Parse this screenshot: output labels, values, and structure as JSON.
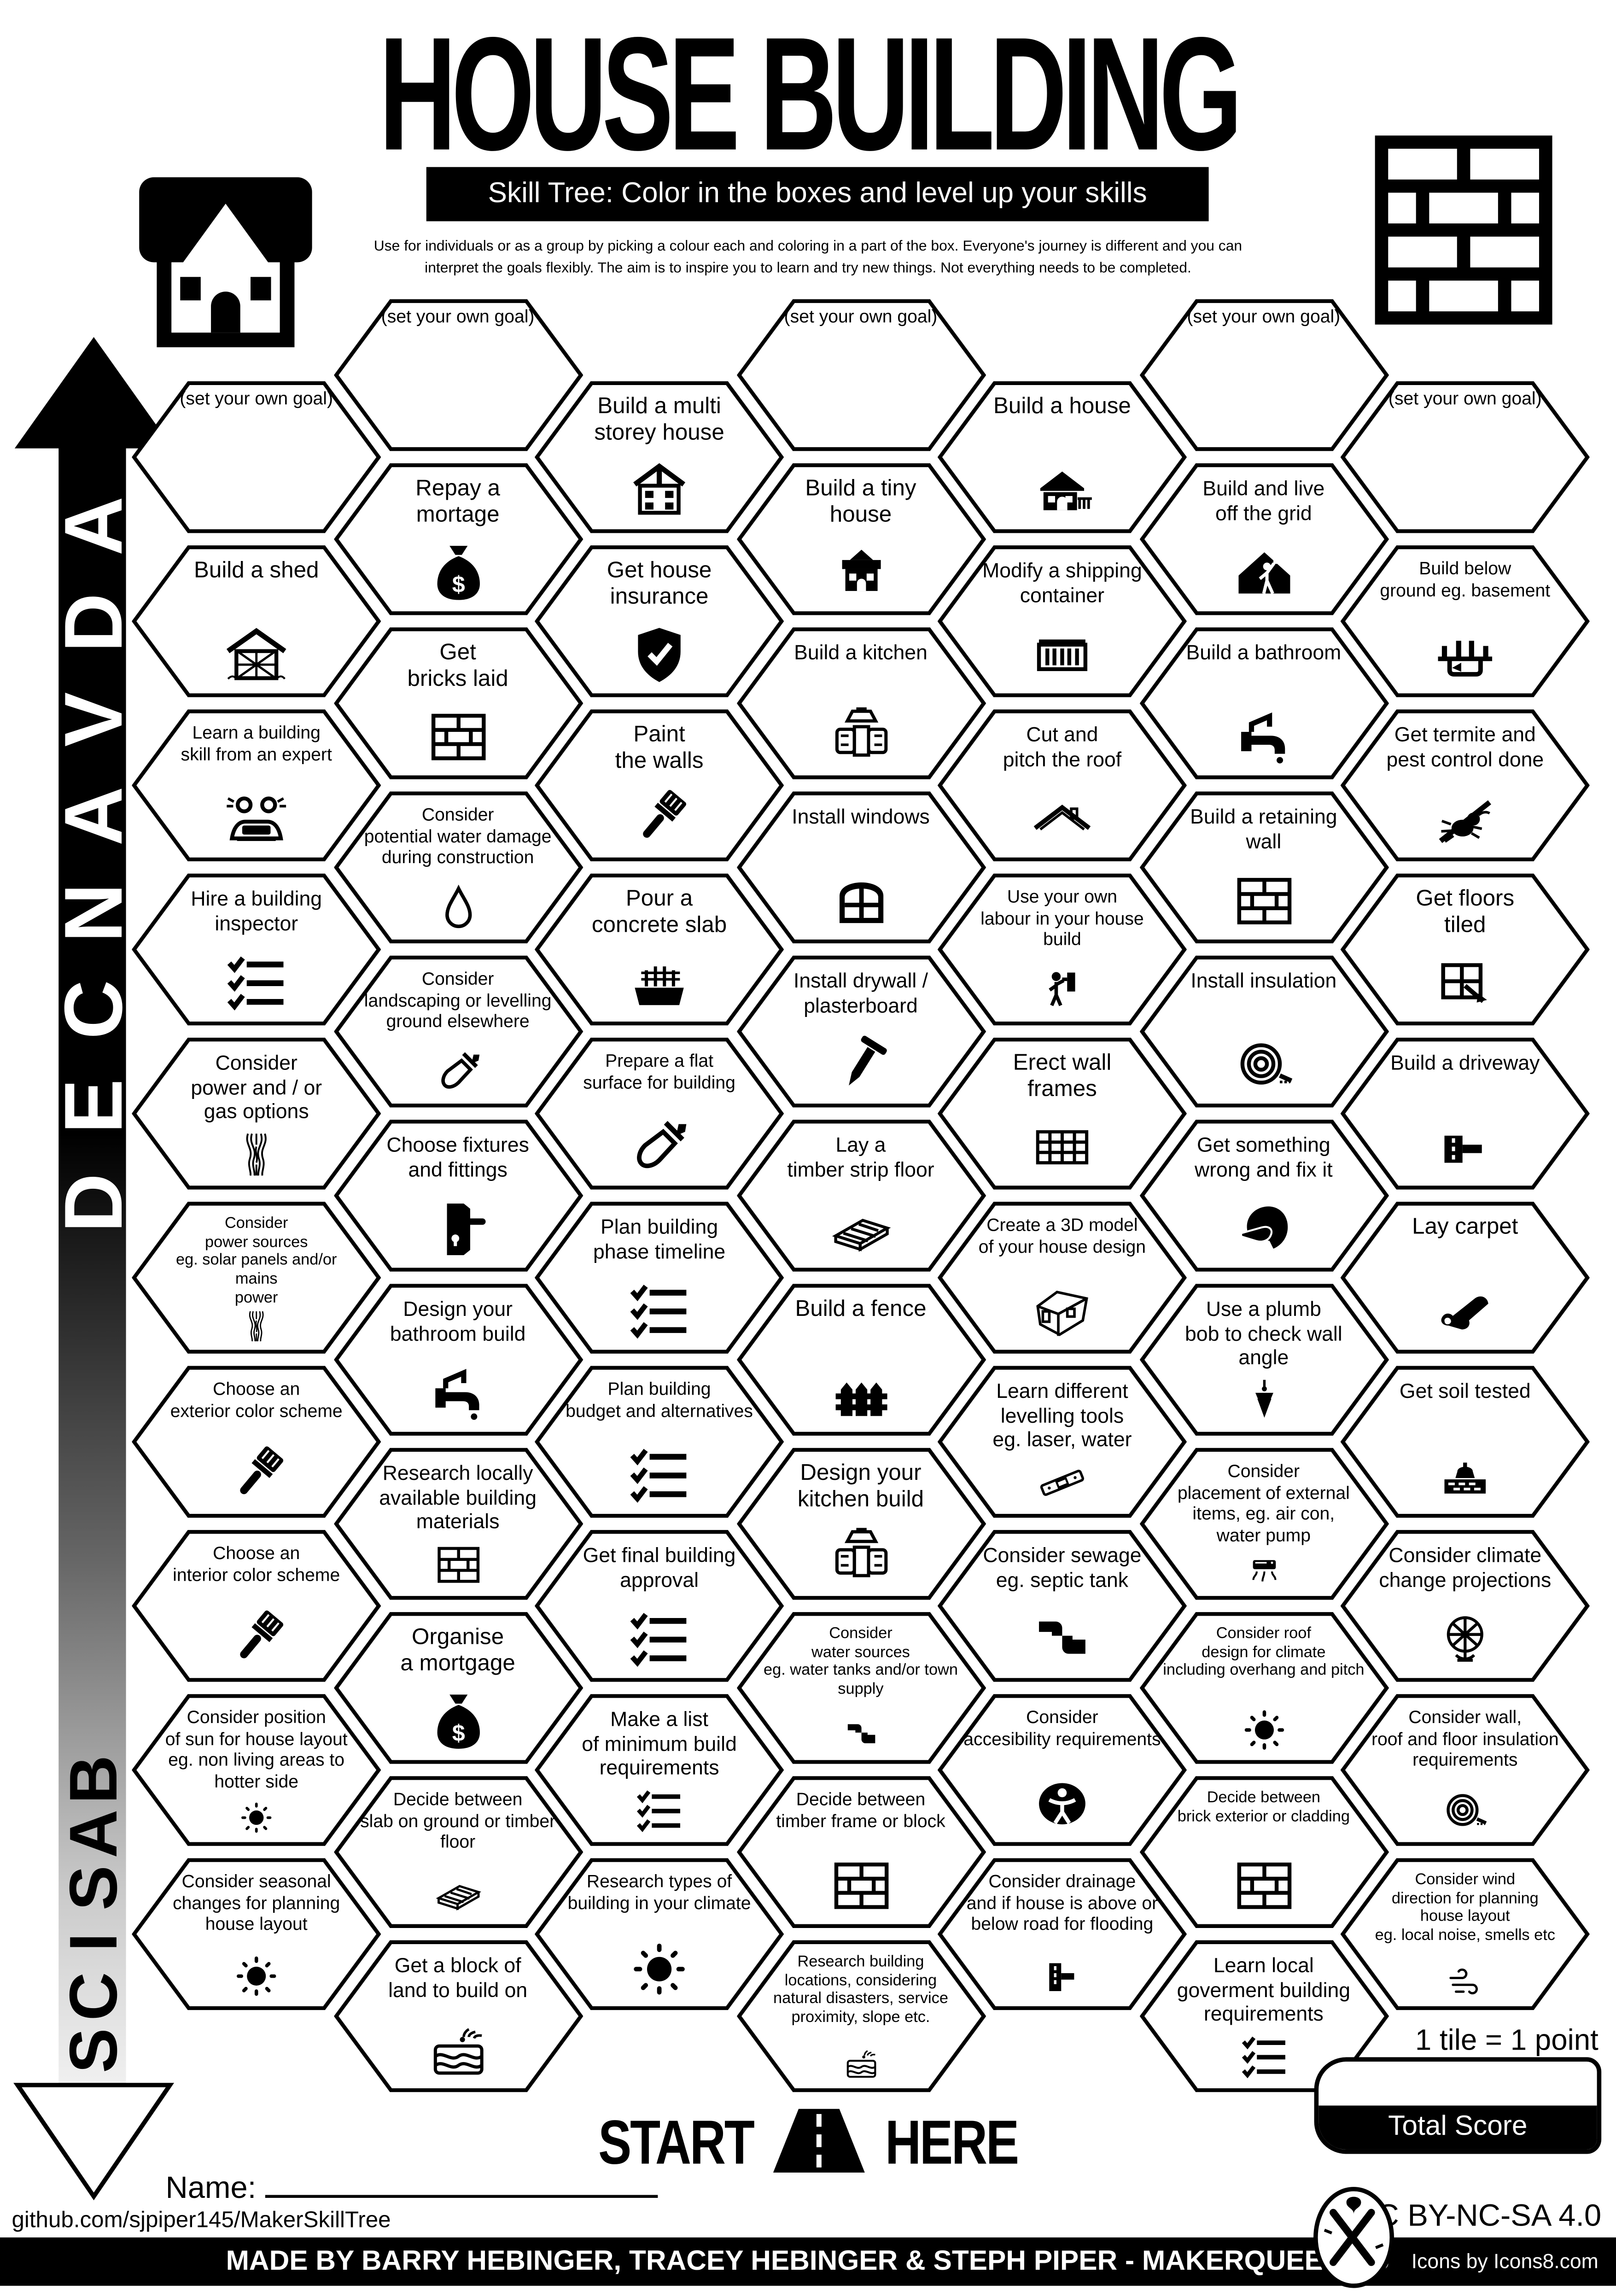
{
  "title": "HOUSE BUILDING",
  "subtitle": "Skill Tree:  Color in the boxes and level up your skills",
  "desc": {
    "line1": "Use for individuals or as a group by picking a colour each and coloring in a part of the box.  Everyone's journey is different and you can",
    "line2": "interpret the goals flexibly.  The aim is to inspire you to learn and try new things. Not everything needs to be completed."
  },
  "axis": {
    "advanced_label": "ADVANCED",
    "basics_label": "BASICS"
  },
  "start_here": {
    "start": "START",
    "here": "HERE"
  },
  "name_label": "Name:",
  "github_url": "github.com/sjpiper145/MakerSkillTree",
  "score": {
    "tile_note": "1 tile = 1 point",
    "total_label": "Total Score"
  },
  "footer": {
    "credit": "MADE BY BARRY HEBINGER, TRACEY HEBINGER & STEPH PIPER  -  MAKERQUEEN AU",
    "icons_credit": "Icons by Icons8.com",
    "license": "CC BY-NC-SA 4.0"
  },
  "colors": {
    "ink": "#000000",
    "paper": "#ffffff"
  },
  "hexagons": [
    {
      "col": 1,
      "row": 0,
      "name": "goal-1",
      "label": "(set your own goal)",
      "icon": null
    },
    {
      "col": 1,
      "row": 1,
      "name": "build-a-shed",
      "label": "Build a shed",
      "icon": "shed"
    },
    {
      "col": 1,
      "row": 2,
      "name": "learn-building-skill-from-expert",
      "label": "Learn a building\nskill from an expert",
      "icon": "learn-expert"
    },
    {
      "col": 1,
      "row": 3,
      "name": "hire-building-inspector",
      "label": "Hire a building\ninspector",
      "icon": "checklist"
    },
    {
      "col": 1,
      "row": 4,
      "name": "consider-power-gas-options",
      "label": "Consider\npower and / or\ngas options",
      "icon": "wires"
    },
    {
      "col": 1,
      "row": 5,
      "name": "consider-power-sources",
      "label": "Consider\npower sources\neg. solar panels and/or mains\npower",
      "icon": "wires"
    },
    {
      "col": 1,
      "row": 6,
      "name": "choose-exterior-color-scheme",
      "label": "Choose an\nexterior color scheme",
      "icon": "brush"
    },
    {
      "col": 1,
      "row": 7,
      "name": "choose-interior-color-scheme",
      "label": "Choose an\ninterior color scheme",
      "icon": "brush"
    },
    {
      "col": 1,
      "row": 8,
      "name": "consider-sun-position",
      "label": "Consider position\nof sun for house layout\neg. non living areas to\nhotter side",
      "icon": "sun"
    },
    {
      "col": 1,
      "row": 9,
      "name": "consider-seasonal-changes",
      "label": "Consider seasonal\nchanges for planning\nhouse layout",
      "icon": "sun"
    },
    {
      "col": 2,
      "row": 0,
      "name": "goal-2",
      "label": "(set your own goal)",
      "icon": null
    },
    {
      "col": 2,
      "row": 1,
      "name": "repay-a-mortage",
      "label": "Repay a\nmortage",
      "icon": "money-bag"
    },
    {
      "col": 2,
      "row": 2,
      "name": "get-bricks-laid",
      "label": "Get\nbricks laid",
      "icon": "bricks"
    },
    {
      "col": 2,
      "row": 3,
      "name": "consider-water-damage",
      "label": "Consider\npotential water damage\nduring construction",
      "icon": "drop"
    },
    {
      "col": 2,
      "row": 4,
      "name": "consider-landscaping",
      "label": "Consider\nlandscaping or levelling\nground elsewhere",
      "icon": "shovel"
    },
    {
      "col": 2,
      "row": 5,
      "name": "choose-fixtures-fittings",
      "label": "Choose fixtures\nand fittings",
      "icon": "door-handle"
    },
    {
      "col": 2,
      "row": 6,
      "name": "design-bathroom-build",
      "label": "Design your\nbathroom build",
      "icon": "tap"
    },
    {
      "col": 2,
      "row": 7,
      "name": "research-local-materials",
      "label": "Research locally\navailable building\nmaterials",
      "icon": "bricks"
    },
    {
      "col": 2,
      "row": 8,
      "name": "organise-a-mortgage",
      "label": "Organise\na mortgage",
      "icon": "money-bag"
    },
    {
      "col": 2,
      "row": 9,
      "name": "decide-slab-or-timber",
      "label": "Decide between\nslab on ground or timber\nfloor",
      "icon": "planks"
    },
    {
      "col": 2,
      "row": 10,
      "name": "get-block-of-land",
      "label": "Get a block of\nland to build on",
      "icon": "field"
    },
    {
      "col": 3,
      "row": 0,
      "name": "build-multi-storey-house",
      "label": "Build a multi\nstorey house",
      "icon": "multi-house"
    },
    {
      "col": 3,
      "row": 1,
      "name": "get-house-insurance",
      "label": "Get house\ninsurance",
      "icon": "shield-check"
    },
    {
      "col": 3,
      "row": 2,
      "name": "paint-the-walls",
      "label": "Paint\nthe walls",
      "icon": "brush"
    },
    {
      "col": 3,
      "row": 3,
      "name": "pour-concrete-slab",
      "label": "Pour a\nconcrete slab",
      "icon": "concrete"
    },
    {
      "col": 3,
      "row": 4,
      "name": "prepare-flat-surface",
      "label": "Prepare a flat\nsurface for building",
      "icon": "shovel"
    },
    {
      "col": 3,
      "row": 5,
      "name": "plan-building-phase-timeline",
      "label": "Plan building\nphase timeline",
      "icon": "checklist"
    },
    {
      "col": 3,
      "row": 6,
      "name": "plan-building-budget",
      "label": "Plan building\nbudget and alternatives",
      "icon": "checklist"
    },
    {
      "col": 3,
      "row": 7,
      "name": "get-final-building-approval",
      "label": "Get final building\napproval",
      "icon": "checklist"
    },
    {
      "col": 3,
      "row": 8,
      "name": "make-minimum-build-list",
      "label": "Make a list\nof minimum build\nrequirements",
      "icon": "checklist"
    },
    {
      "col": 3,
      "row": 9,
      "name": "research-building-types-climate",
      "label": "Research types of\nbuilding in your climate",
      "icon": "sun"
    },
    {
      "col": 4,
      "row": 0,
      "name": "goal-4",
      "label": "(set your own goal)",
      "icon": null
    },
    {
      "col": 4,
      "row": 1,
      "name": "build-a-tiny-house",
      "label": "Build a tiny\nhouse",
      "icon": "tiny-house"
    },
    {
      "col": 4,
      "row": 2,
      "name": "build-a-kitchen",
      "label": "Build a kitchen",
      "icon": "cabinet"
    },
    {
      "col": 4,
      "row": 3,
      "name": "install-windows",
      "label": "Install windows",
      "icon": "window"
    },
    {
      "col": 4,
      "row": 4,
      "name": "install-drywall",
      "label": "Install drywall /\nplasterboard",
      "icon": "nail"
    },
    {
      "col": 4,
      "row": 5,
      "name": "lay-timber-strip-floor",
      "label": "Lay a\ntimber strip floor",
      "icon": "planks"
    },
    {
      "col": 4,
      "row": 6,
      "name": "build-a-fence",
      "label": "Build a fence",
      "icon": "fence"
    },
    {
      "col": 4,
      "row": 7,
      "name": "design-kitchen-build",
      "label": "Design your\nkitchen build",
      "icon": "cabinet"
    },
    {
      "col": 4,
      "row": 8,
      "name": "consider-water-sources",
      "label": "Consider\nwater sources\neg. water tanks and/or town\nsupply",
      "icon": "pipe"
    },
    {
      "col": 4,
      "row": 9,
      "name": "decide-timber-frame-or-block",
      "label": "Decide between\ntimber frame or block",
      "icon": "bricks"
    },
    {
      "col": 4,
      "row": 10,
      "name": "research-building-locations",
      "label": "Research building\nlocations, considering\nnatural disasters, service\nproximity, slope etc.",
      "icon": "field"
    },
    {
      "col": 5,
      "row": 0,
      "name": "build-a-house",
      "label": "Build a house",
      "icon": "house"
    },
    {
      "col": 5,
      "row": 1,
      "name": "modify-shipping-container",
      "label": "Modify a shipping\ncontainer",
      "icon": "container"
    },
    {
      "col": 5,
      "row": 2,
      "name": "cut-and-pitch-roof",
      "label": "Cut and\npitch the roof",
      "icon": "roof"
    },
    {
      "col": 5,
      "row": 3,
      "name": "use-own-labour",
      "label": "Use your own\nlabour in your house\nbuild",
      "icon": "painter"
    },
    {
      "col": 5,
      "row": 4,
      "name": "erect-wall-frames",
      "label": "Erect wall\nframes",
      "icon": "wall-frame"
    },
    {
      "col": 5,
      "row": 5,
      "name": "create-3d-model",
      "label": "Create a 3D model\nof your house design",
      "icon": "house-3d"
    },
    {
      "col": 5,
      "row": 6,
      "name": "learn-levelling-tools",
      "label": "Learn different\nlevelling tools\neg. laser, water",
      "icon": "spirit-level"
    },
    {
      "col": 5,
      "row": 7,
      "name": "consider-sewage",
      "label": "Consider sewage\neg. septic tank",
      "icon": "pipe"
    },
    {
      "col": 5,
      "row": 8,
      "name": "consider-accessibility",
      "label": "Consider\naccesibility requirements",
      "icon": "accessibility"
    },
    {
      "col": 5,
      "row": 9,
      "name": "consider-drainage",
      "label": "Consider drainage\nand if house is above or\nbelow road for flooding",
      "icon": "road-flood"
    },
    {
      "col": 6,
      "row": 0,
      "name": "goal-6",
      "label": "(set your own goal)",
      "icon": null
    },
    {
      "col": 6,
      "row": 1,
      "name": "build-live-off-grid",
      "label": "Build and live\noff the grid",
      "icon": "off-grid"
    },
    {
      "col": 6,
      "row": 2,
      "name": "build-a-bathroom",
      "label": "Build a bathroom",
      "icon": "tap"
    },
    {
      "col": 6,
      "row": 3,
      "name": "build-retaining-wall",
      "label": "Build a retaining\nwall",
      "icon": "bricks"
    },
    {
      "col": 6,
      "row": 4,
      "name": "install-insulation",
      "label": "Install insulation",
      "icon": "insulation"
    },
    {
      "col": 6,
      "row": 5,
      "name": "get-something-wrong-fix-it",
      "label": "Get something\nwrong and fix it",
      "icon": "facepalm"
    },
    {
      "col": 6,
      "row": 6,
      "name": "use-plumb-bob",
      "label": "Use a plumb\nbob to check wall\nangle",
      "icon": "plumb-bob"
    },
    {
      "col": 6,
      "row": 7,
      "name": "consider-external-items",
      "label": "Consider\nplacement of external\nitems, eg. air con,\nwater pump",
      "icon": "ac-unit"
    },
    {
      "col": 6,
      "row": 8,
      "name": "consider-roof-design-climate",
      "label": "Consider roof\ndesign for climate\nincluding overhang and pitch",
      "icon": "sun"
    },
    {
      "col": 6,
      "row": 9,
      "name": "decide-brick-or-cladding",
      "label": "Decide between\nbrick exterior or cladding",
      "icon": "bricks"
    },
    {
      "col": 6,
      "row": 10,
      "name": "learn-local-government-requirements",
      "label": "Learn local\ngoverment building\nrequirements",
      "icon": "checklist"
    },
    {
      "col": 7,
      "row": 0,
      "name": "goal-7",
      "label": "(set your own goal)",
      "icon": null
    },
    {
      "col": 7,
      "row": 1,
      "name": "build-below-ground",
      "label": "Build below\nground eg. basement",
      "icon": "basement"
    },
    {
      "col": 7,
      "row": 2,
      "name": "get-termite-pest-control",
      "label": "Get termite and\npest control done",
      "icon": "termite"
    },
    {
      "col": 7,
      "row": 3,
      "name": "get-floors-tiled",
      "label": "Get floors\ntiled",
      "icon": "tile"
    },
    {
      "col": 7,
      "row": 4,
      "name": "build-a-driveway",
      "label": "Build a driveway",
      "icon": "driveway"
    },
    {
      "col": 7,
      "row": 5,
      "name": "lay-carpet",
      "label": "Lay carpet",
      "icon": "carpet"
    },
    {
      "col": 7,
      "row": 6,
      "name": "get-soil-tested",
      "label": "Get soil tested",
      "icon": "soil"
    },
    {
      "col": 7,
      "row": 7,
      "name": "consider-climate-change",
      "label": "Consider climate\nchange projections",
      "icon": "globe"
    },
    {
      "col": 7,
      "row": 8,
      "name": "consider-insulation-requirements",
      "label": "Consider wall,\nroof and floor insulation\nrequirements",
      "icon": "insulation"
    },
    {
      "col": 7,
      "row": 9,
      "name": "consider-wind-direction",
      "label": "Consider wind\ndirection for planning\nhouse layout\neg. local noise, smells etc",
      "icon": "wind"
    }
  ]
}
